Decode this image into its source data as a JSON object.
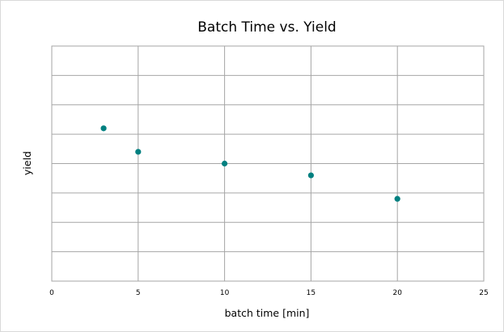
{
  "chart_data": {
    "type": "scatter",
    "title": "Batch Time vs. Yield",
    "xlabel": "batch time [min]",
    "ylabel": "yield",
    "xlim": [
      0,
      25
    ],
    "ylim": [
      0,
      8
    ],
    "x_ticks": [
      "0",
      "5",
      "10",
      "15",
      "20",
      "25"
    ],
    "grid": true,
    "legend": "none",
    "marker_color": "#008080",
    "gridline_color": "#a6a6a6",
    "series": [
      {
        "x": [
          3,
          5,
          10,
          15,
          20
        ],
        "y": [
          5.2,
          4.4,
          4.0,
          3.6,
          2.8
        ]
      }
    ]
  }
}
